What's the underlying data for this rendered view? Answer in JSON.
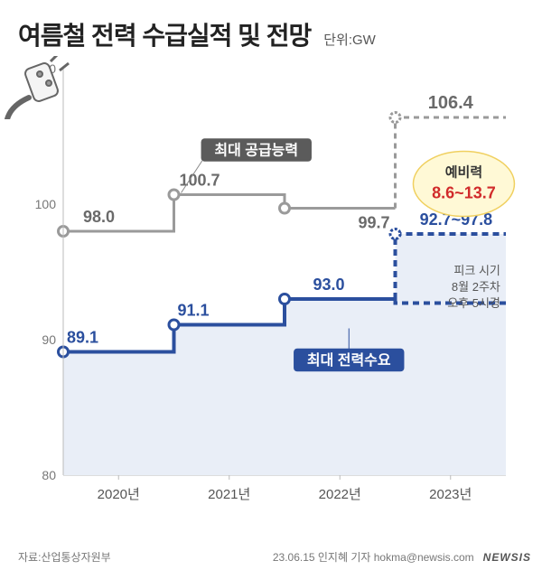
{
  "title": "여름철 전력 수급실적 및 전망",
  "unit": "단위:GW",
  "source_label": "자료:산업통상자원부",
  "credit": "23.06.15 인지혜 기자 hokma@newsis.com",
  "watermark": "NEWSIS",
  "chart": {
    "type": "step-line",
    "ylim": [
      80,
      110
    ],
    "ytick_step": 10,
    "yticks": [
      80,
      90,
      100,
      110
    ],
    "x_categories": [
      "2020년",
      "2021년",
      "2022년",
      "2023년"
    ],
    "supply": {
      "label": "최대 공급능력",
      "color": "#9a9a9a",
      "linewidth": 3,
      "marker_fill": "#ffffff",
      "marker_stroke": "#9a9a9a",
      "values": [
        98.0,
        100.7,
        99.7,
        106.4
      ],
      "value_labels": [
        "98.0",
        "100.7",
        "99.7",
        "106.4"
      ],
      "forecast_dashed": true
    },
    "demand": {
      "label": "최대 전력수요",
      "color": "#2b4f9e",
      "linewidth": 4,
      "marker_fill": "#ffffff",
      "marker_stroke": "#2b4f9e",
      "values": [
        89.1,
        91.1,
        93.0,
        97.8
      ],
      "low_2023": 92.7,
      "value_labels": [
        "89.1",
        "91.1",
        "93.0",
        "92.7~97.8"
      ],
      "forecast_dashed": true,
      "fill_color": "#e9eef7"
    },
    "reserve_bubble": {
      "title": "예비력",
      "value": "8.6~13.7",
      "title_color": "#333333",
      "value_color": "#d12b2b",
      "bg": "#fff9d6",
      "stroke": "#f0d060"
    },
    "peak_note": {
      "lines": [
        "피크 시기",
        "8월 2주차",
        "오후 5시경"
      ],
      "color": "#555555",
      "fontsize": 13
    },
    "axis_color": "#bbbbbb",
    "axis_label_color": "#777777",
    "axis_fontsize": 14,
    "grid_color": "#dddddd",
    "label_box_bg": "#5b5b5b",
    "label_box_bg_demand": "#2b4f9e",
    "label_box_text": "#ffffff"
  }
}
